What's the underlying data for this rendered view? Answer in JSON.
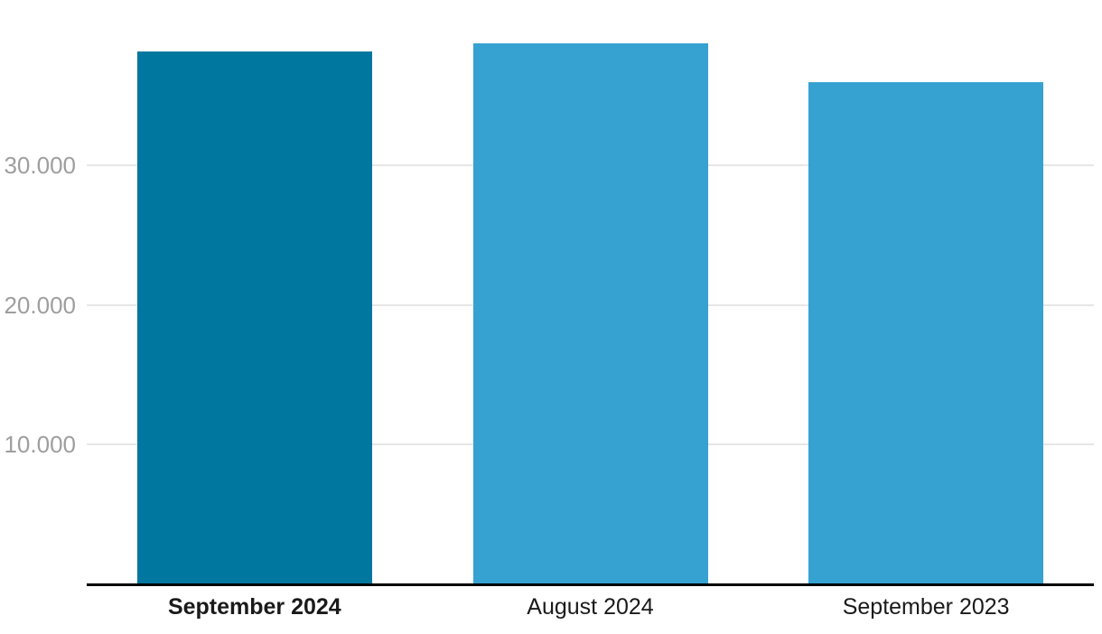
{
  "chart_data": {
    "type": "bar",
    "categories": [
      "September 2024",
      "August 2024",
      "September 2023"
    ],
    "values": [
      38100,
      38700,
      35950
    ],
    "title": "",
    "xlabel": "",
    "ylabel": "",
    "ylim": [
      0,
      40000
    ],
    "yticks": [
      10000,
      20000,
      30000
    ],
    "ytick_labels": [
      "10.000",
      "20.000",
      "30.000"
    ],
    "grid": true,
    "legend": "none",
    "highlighted_index": 0,
    "bar_colors": [
      "#00779F",
      "#35A2D2",
      "#35A2D2"
    ],
    "colors": {
      "bar_highlight": "#00779F",
      "bar_default": "#35A2D2",
      "gridline": "#E6E6E6",
      "axis_line": "#000000",
      "ytick_text": "#9E9E9E",
      "xtick_text": "#1A1A1A",
      "background": "#FFFFFF"
    }
  }
}
